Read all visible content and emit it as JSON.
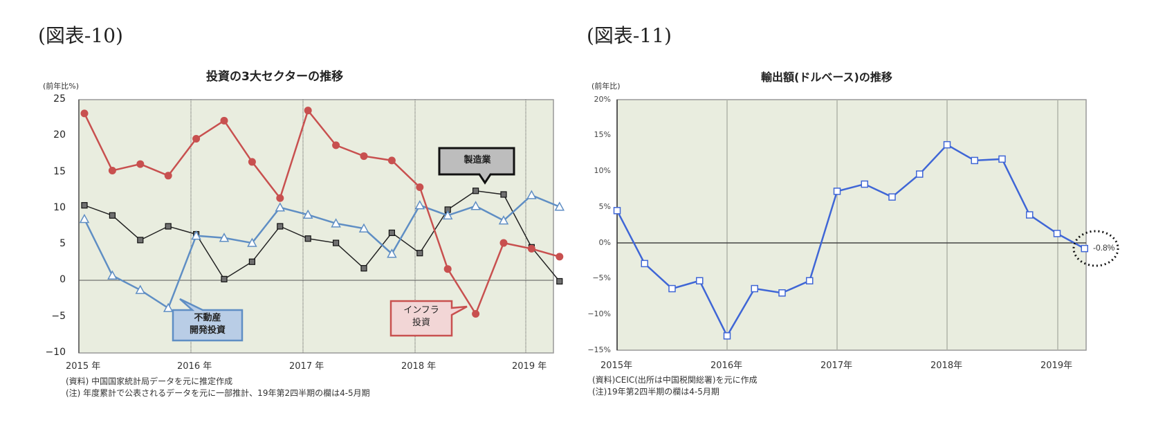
{
  "figures": [
    {
      "label": "(図表-10)",
      "title": "投資の3大セクターの推移",
      "unit": "(前年比%)",
      "yticks": [
        "25",
        "20",
        "15",
        "10",
        "5",
        "0",
        "−5",
        "−10"
      ],
      "xticks": [
        "2015 年",
        "2016 年",
        "2017 年",
        "2018 年",
        "2019 年"
      ],
      "callouts": {
        "manufacturing": "製造業",
        "real_estate_line1": "不動産",
        "real_estate_line2": "開発投資",
        "infra_line1": "インフラ",
        "infra_line2": "投資"
      },
      "notes": [
        "(資料) 中国国家統計局データを元に推定作成",
        "(注) 年度累計で公表されるデータを元に一部推計、19年第2四半期の欄は4-5月期"
      ]
    },
    {
      "label": "(図表-11)",
      "title": "輸出額(ドルベース)の推移",
      "unit": "(前年比)",
      "yticks": [
        "20%",
        "15%",
        "10%",
        "5%",
        "0%",
        "−5%",
        "−10%",
        "−15%"
      ],
      "xticks": [
        "2015年",
        "2016年",
        "2017年",
        "2018年",
        "2019年"
      ],
      "annotation": "-0.8%",
      "notes": [
        "(資料)CEIC(出所は中国税関総署)を元に作成",
        "(注)19年第2四半期の欄は4-5月期"
      ]
    }
  ],
  "colors": {
    "plot_bg": "#e9eddf",
    "infra": "#c8504f",
    "manufacturing": "#222222",
    "manufacturing_marker": "#707070",
    "real_estate": "#5f8ec4",
    "exports": "#3f66d6",
    "callout_mfg_bg": "#bdbdbd",
    "callout_re_bg": "#b9cde6",
    "callout_infra_bg": "#f2d6d6"
  },
  "chart_data": [
    {
      "type": "line",
      "title": "投資の3大セクターの推移",
      "xlabel": "",
      "ylabel": "(前年比%)",
      "ylim": [
        -10,
        25
      ],
      "grid": "vertical dotted lines at year boundaries",
      "x": [
        "2015Q1",
        "2015Q2",
        "2015Q3",
        "2015Q4",
        "2016Q1",
        "2016Q2",
        "2016Q3",
        "2016Q4",
        "2017Q1",
        "2017Q2",
        "2017Q3",
        "2017Q4",
        "2018Q1",
        "2018Q2",
        "2018Q3",
        "2018Q4",
        "2019Q1",
        "2019Q2"
      ],
      "series": [
        {
          "name": "インフラ投資",
          "marker": "circle",
          "values": [
            23.1,
            15.2,
            16.1,
            14.5,
            19.6,
            22.1,
            16.4,
            11.4,
            23.5,
            18.7,
            17.2,
            16.6,
            12.9,
            1.6,
            -4.6,
            5.2,
            4.4,
            3.3
          ]
        },
        {
          "name": "製造業",
          "marker": "square",
          "values": [
            10.4,
            9.0,
            5.6,
            7.5,
            6.4,
            0.2,
            2.6,
            7.5,
            5.8,
            5.2,
            1.7,
            6.6,
            3.8,
            9.8,
            12.4,
            11.9,
            4.6,
            -0.1
          ]
        },
        {
          "name": "不動産開発投資",
          "marker": "triangle",
          "values": [
            8.5,
            0.7,
            -1.3,
            -3.8,
            6.2,
            5.9,
            5.2,
            10.1,
            9.1,
            7.9,
            7.2,
            3.7,
            10.4,
            9.0,
            10.3,
            8.3,
            11.8,
            10.2
          ]
        }
      ]
    },
    {
      "type": "line",
      "title": "輸出額(ドルベース)の推移",
      "xlabel": "",
      "ylabel": "(前年比)",
      "ylim": [
        -15,
        20
      ],
      "grid": "vertical solid lines at year boundaries",
      "x": [
        "2015Q1",
        "2015Q2",
        "2015Q3",
        "2015Q4",
        "2016Q1",
        "2016Q2",
        "2016Q3",
        "2016Q4",
        "2017Q1",
        "2017Q2",
        "2017Q3",
        "2017Q4",
        "2018Q1",
        "2018Q2",
        "2018Q3",
        "2018Q4",
        "2019Q1",
        "2019Q2"
      ],
      "series": [
        {
          "name": "輸出額",
          "marker": "square-open",
          "values": [
            4.5,
            -2.9,
            -6.4,
            -5.3,
            -13.0,
            -6.4,
            -7.0,
            -5.3,
            7.2,
            8.2,
            6.4,
            9.6,
            13.7,
            11.5,
            11.7,
            3.9,
            1.3,
            -0.8
          ]
        }
      ],
      "annotations": [
        "-0.8% (last point, circled)"
      ]
    }
  ]
}
